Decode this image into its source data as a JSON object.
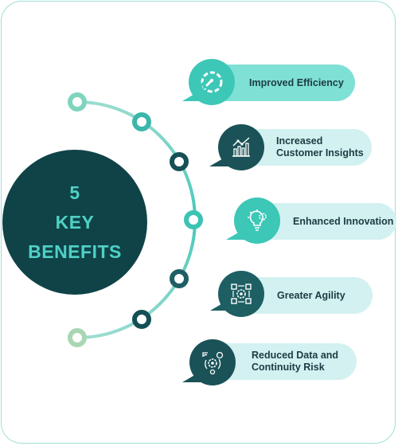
{
  "center": {
    "line1": "5",
    "line2": "KEY",
    "line3": "BENEFITS"
  },
  "benefits": [
    {
      "label": "Improved Efficiency",
      "icon": "gauge-icon"
    },
    {
      "label": "Increased Customer Insights",
      "icon": "chart-insights-icon"
    },
    {
      "label": "Enhanced Innovation",
      "icon": "lightbulb-gear-icon"
    },
    {
      "label": "Greater Agility",
      "icon": "agility-cycle-icon"
    },
    {
      "label": "Reduced Data and Continuity Risk",
      "icon": "risk-shield-icon"
    }
  ],
  "colors": {
    "dark_teal": "#0f4348",
    "mid_teal": "#1e5f63",
    "bright_teal": "#3cc7b6",
    "light_teal": "#7fd9cf",
    "pill_bg_light": "#cdeeee",
    "pill_bg_mid": "#7fded3",
    "pale_green": "#b7dfc6"
  }
}
